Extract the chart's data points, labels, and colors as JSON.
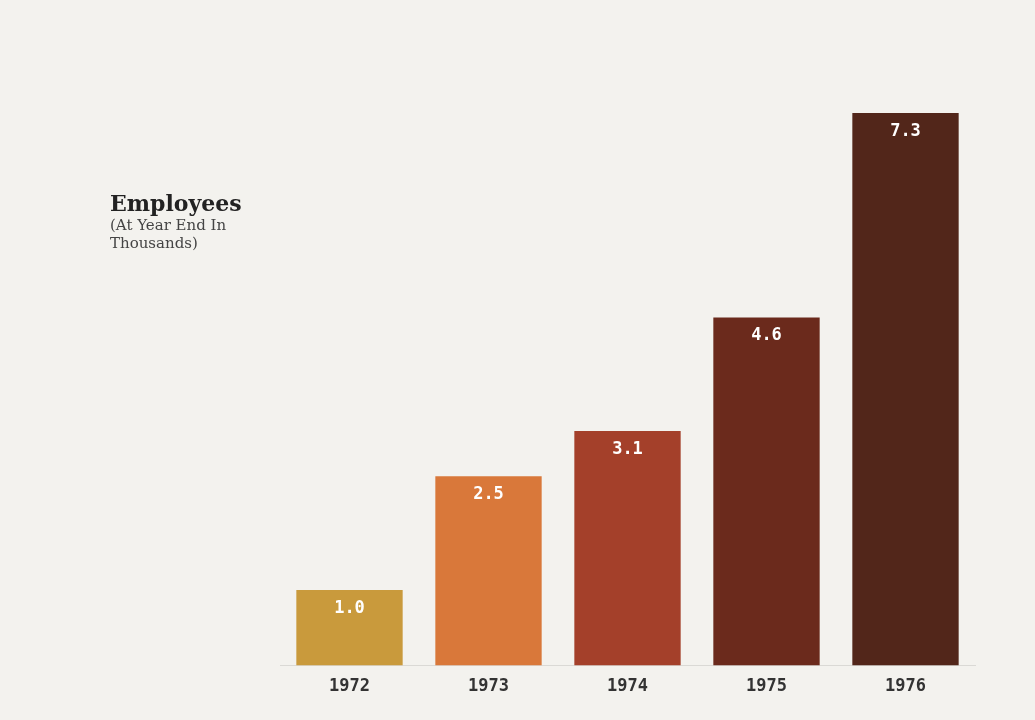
{
  "chart_data": {
    "type": "bar",
    "title": "Employees",
    "subtitle": "(At Year End In Thousands)",
    "categories": [
      "1972",
      "1973",
      "1974",
      "1975",
      "1976"
    ],
    "values": [
      1.0,
      2.5,
      3.1,
      4.6,
      7.3
    ],
    "colors": [
      "#c99a3c",
      "#d9783a",
      "#a4402a",
      "#6b2a1c",
      "#52261a"
    ],
    "value_labels": [
      "1.0",
      "2.5",
      "3.1",
      "4.6",
      "7.3"
    ],
    "legend": false,
    "grid": false
  }
}
